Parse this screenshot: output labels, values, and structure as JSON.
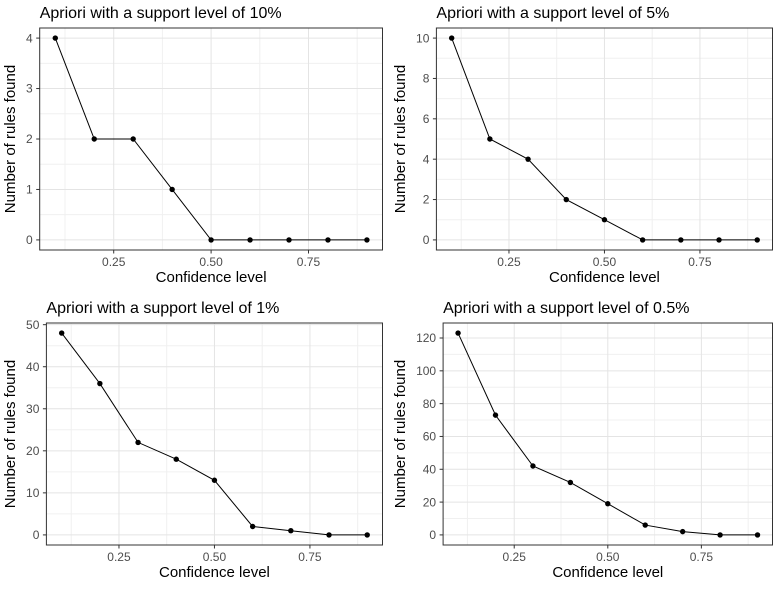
{
  "page": {
    "background": "#ffffff"
  },
  "theme": {
    "panel_background": "#ffffff",
    "panel_border": "#333333",
    "grid_major": "#e4e4e4",
    "grid_minor": "#f0f0f0",
    "tick_mark_color": "#333333",
    "tick_label_color": "#4d4d4d",
    "title_color": "#000000",
    "axis_title_color": "#000000",
    "line_color": "#000000",
    "point_color": "#000000"
  },
  "chart_data": [
    {
      "type": "line",
      "title": "Apriori with a support level of 10%",
      "xlabel": "Confidence level",
      "ylabel": "Number of rules found",
      "x": [
        0.1,
        0.2,
        0.3,
        0.4,
        0.5,
        0.6,
        0.7,
        0.8,
        0.9
      ],
      "values": [
        4,
        2,
        2,
        1,
        0,
        0,
        0,
        0,
        0
      ],
      "xticks": [
        0.25,
        0.5,
        0.75
      ],
      "xtick_labels": [
        "0.25",
        "0.50",
        "0.75"
      ],
      "yticks": [
        0,
        1,
        2,
        3,
        4
      ],
      "xlim": [
        0.06,
        0.94
      ],
      "ylim": [
        -0.2,
        4.2
      ],
      "grid": true,
      "legend": "none",
      "markers": true
    },
    {
      "type": "line",
      "title": "Apriori with a support level of 5%",
      "xlabel": "Confidence level",
      "ylabel": "Number of rules found",
      "x": [
        0.1,
        0.2,
        0.3,
        0.4,
        0.5,
        0.6,
        0.7,
        0.8,
        0.9
      ],
      "values": [
        10,
        5,
        4,
        2,
        1,
        0,
        0,
        0,
        0
      ],
      "xticks": [
        0.25,
        0.5,
        0.75
      ],
      "xtick_labels": [
        "0.25",
        "0.50",
        "0.75"
      ],
      "yticks": [
        0,
        2,
        4,
        6,
        8,
        10
      ],
      "xlim": [
        0.06,
        0.94
      ],
      "ylim": [
        -0.5,
        10.5
      ],
      "grid": true,
      "legend": "none",
      "markers": true
    },
    {
      "type": "line",
      "title": "Apriori with a support level of 1%",
      "xlabel": "Confidence level",
      "ylabel": "Number of rules found",
      "x": [
        0.1,
        0.2,
        0.3,
        0.4,
        0.5,
        0.6,
        0.7,
        0.8,
        0.9
      ],
      "values": [
        48,
        36,
        22,
        18,
        13,
        2,
        1,
        0,
        0
      ],
      "xticks": [
        0.25,
        0.5,
        0.75
      ],
      "xtick_labels": [
        "0.25",
        "0.50",
        "0.75"
      ],
      "yticks": [
        0,
        10,
        20,
        30,
        40,
        50
      ],
      "xlim": [
        0.06,
        0.94
      ],
      "ylim": [
        -2.4,
        50.4
      ],
      "grid": true,
      "legend": "none",
      "markers": true
    },
    {
      "type": "line",
      "title": "Apriori with a support level of 0.5%",
      "xlabel": "Confidence level",
      "ylabel": "Number of rules found",
      "x": [
        0.1,
        0.2,
        0.3,
        0.4,
        0.5,
        0.6,
        0.7,
        0.8,
        0.9
      ],
      "values": [
        123,
        73,
        42,
        32,
        19,
        6,
        2,
        0,
        0
      ],
      "xticks": [
        0.25,
        0.5,
        0.75
      ],
      "xtick_labels": [
        "0.25",
        "0.50",
        "0.75"
      ],
      "yticks": [
        0,
        20,
        40,
        60,
        80,
        100,
        120
      ],
      "xlim": [
        0.06,
        0.94
      ],
      "ylim": [
        -6.15,
        129.15
      ],
      "grid": true,
      "legend": "none",
      "markers": true
    }
  ]
}
